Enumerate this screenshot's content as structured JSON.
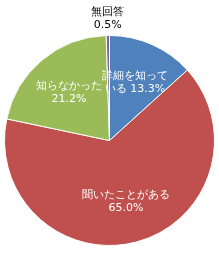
{
  "chart_data": {
    "type": "pie",
    "categories": [
      "詳細を知っている",
      "聞いたことがある",
      "知らなかった",
      "無回答"
    ],
    "values": [
      13.3,
      65.0,
      21.2,
      0.5
    ],
    "value_labels": [
      "13.3%",
      "65.0%",
      "21.2%",
      "0.5%"
    ],
    "colors": [
      "#4f81bd",
      "#c0504d",
      "#9bbb59",
      "#8064a2"
    ],
    "data_labels": true
  }
}
